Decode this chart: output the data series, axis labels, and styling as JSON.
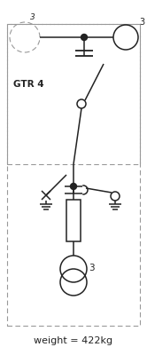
{
  "weight_label": "weight = 422kg",
  "gtr_label": "GTR 4",
  "bg_color": "#ffffff",
  "line_color": "#222222",
  "dash_color": "#999999",
  "fig_width": 1.66,
  "fig_height": 4.0,
  "dpi": 100
}
